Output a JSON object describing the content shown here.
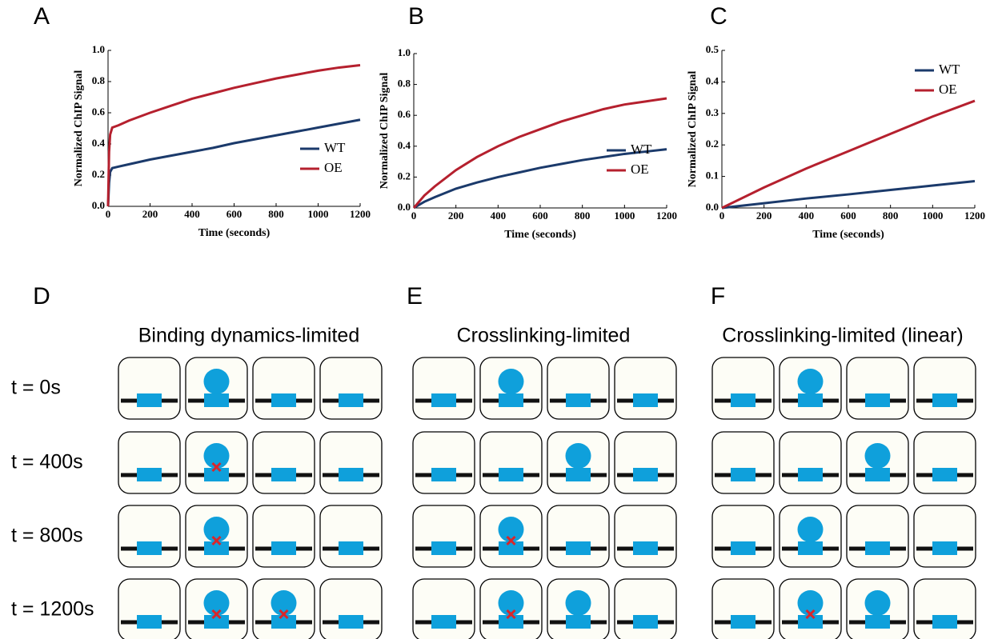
{
  "chart_data": [
    {
      "type": "line",
      "panel": "A",
      "xlabel": "Time (seconds)",
      "ylabel": "Normalized ChIP Signal",
      "x": [
        0,
        5,
        10,
        20,
        50,
        100,
        200,
        300,
        400,
        500,
        600,
        700,
        800,
        900,
        1000,
        1100,
        1200
      ],
      "series": [
        {
          "name": "WT",
          "color": "#1b3a6b",
          "values": [
            0,
            0.15,
            0.22,
            0.245,
            0.255,
            0.27,
            0.3,
            0.325,
            0.35,
            0.375,
            0.405,
            0.43,
            0.455,
            0.48,
            0.505,
            0.53,
            0.555
          ]
        },
        {
          "name": "OE",
          "color": "#b5202e",
          "values": [
            0,
            0.35,
            0.46,
            0.505,
            0.52,
            0.55,
            0.6,
            0.645,
            0.69,
            0.725,
            0.76,
            0.79,
            0.82,
            0.845,
            0.87,
            0.89,
            0.905
          ]
        }
      ],
      "xlim": [
        0,
        1200
      ],
      "ylim": [
        0,
        1
      ],
      "xticks": [
        0,
        200,
        400,
        600,
        800,
        1000,
        1200
      ],
      "yticks": [
        {
          "value": 0,
          "label": "0.0"
        },
        0.2,
        0.4,
        0.6,
        0.8,
        {
          "value": 1,
          "label": "1.0"
        }
      ],
      "legend": "lower right"
    },
    {
      "type": "line",
      "panel": "B",
      "xlabel": "Time (seconds)",
      "ylabel": "Normalized ChIP Signal",
      "x": [
        0,
        50,
        100,
        200,
        300,
        400,
        500,
        600,
        700,
        800,
        900,
        1000,
        1100,
        1200
      ],
      "series": [
        {
          "name": "WT",
          "color": "#1b3a6b",
          "values": [
            0,
            0.04,
            0.07,
            0.125,
            0.165,
            0.2,
            0.23,
            0.26,
            0.285,
            0.31,
            0.33,
            0.35,
            0.365,
            0.38
          ]
        },
        {
          "name": "OE",
          "color": "#b5202e",
          "values": [
            0,
            0.08,
            0.14,
            0.245,
            0.33,
            0.4,
            0.46,
            0.51,
            0.56,
            0.6,
            0.64,
            0.67,
            0.69,
            0.71
          ]
        }
      ],
      "xlim": [
        0,
        1200
      ],
      "ylim": [
        0,
        1
      ],
      "xticks": [
        0,
        200,
        400,
        600,
        800,
        1000,
        1200
      ],
      "yticks": [
        {
          "value": 0,
          "label": "0.0"
        },
        0.2,
        0.4,
        0.6,
        0.8,
        {
          "value": 1,
          "label": "1.0"
        }
      ],
      "legend": "lower right"
    },
    {
      "type": "line",
      "panel": "C",
      "xlabel": "Time (seconds)",
      "ylabel": "Normalized ChIP Signal",
      "x": [
        0,
        200,
        400,
        600,
        800,
        1000,
        1200
      ],
      "series": [
        {
          "name": "WT",
          "color": "#1b3a6b",
          "values": [
            0,
            0.015,
            0.03,
            0.043,
            0.057,
            0.071,
            0.085
          ]
        },
        {
          "name": "OE",
          "color": "#b5202e",
          "values": [
            0,
            0.065,
            0.125,
            0.18,
            0.235,
            0.29,
            0.34
          ]
        }
      ],
      "xlim": [
        0,
        1200
      ],
      "ylim": [
        0,
        0.5
      ],
      "xticks": [
        0,
        200,
        400,
        600,
        800,
        1000,
        1200
      ],
      "yticks": [
        {
          "value": 0,
          "label": "0.0"
        },
        0.1,
        0.2,
        0.3,
        0.4,
        0.5
      ],
      "legend": "upper right"
    }
  ],
  "diagrams": [
    {
      "panel": "D",
      "title": "Binding dynamics-limited"
    },
    {
      "panel": "E",
      "title": "Crosslinking-limited"
    },
    {
      "panel": "F",
      "title": "Crosslinking-limited (linear)"
    }
  ],
  "row_labels": [
    "t = 0s",
    "t = 400s",
    "t = 800s",
    "t = 1200s"
  ]
}
